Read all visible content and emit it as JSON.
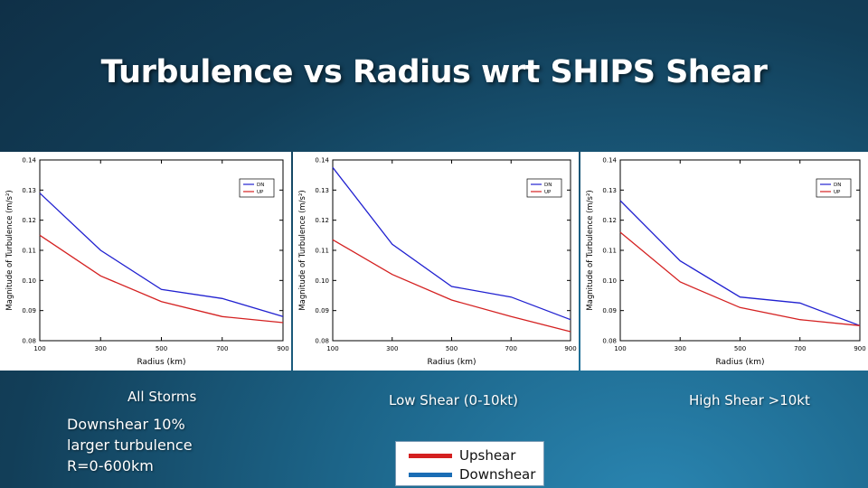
{
  "slide": {
    "title": "Turbulence vs Radius wrt SHIPS Shear",
    "captions": [
      "All Storms",
      "Low Shear (0-10kt)",
      "High Shear >10kt"
    ],
    "note_lines": [
      "Downshear 10%",
      "larger turbulence",
      "R=0-600km"
    ],
    "legend": [
      {
        "label": "Upshear",
        "color": "#d42020"
      },
      {
        "label": "Downshear",
        "color": "#1a6db5"
      }
    ]
  },
  "chart_data": [
    {
      "type": "line",
      "title": "All Storms",
      "xlabel": "Radius (km)",
      "ylabel": "Magnitude of Turbulence (m/s²)",
      "x": [
        100,
        300,
        500,
        700,
        900
      ],
      "xlim": [
        100,
        900
      ],
      "ylim": [
        0.08,
        0.14
      ],
      "xticks": [
        "100",
        "300",
        "500",
        "700",
        "900"
      ],
      "yticks": [
        "0.08",
        "0.09",
        "0.10",
        "0.11",
        "0.12",
        "0.13",
        "0.14"
      ],
      "legend": [
        "DN",
        "UP"
      ],
      "series": [
        {
          "name": "DN",
          "color": "#2020d0",
          "values": [
            0.129,
            0.11,
            0.097,
            0.094,
            0.088
          ]
        },
        {
          "name": "UP",
          "color": "#d42020",
          "values": [
            0.115,
            0.1015,
            0.093,
            0.088,
            0.086
          ]
        }
      ]
    },
    {
      "type": "line",
      "title": "Low Shear (0-10kt)",
      "xlabel": "Radius (km)",
      "ylabel": "Magnitude of Turbulence (m/s²)",
      "x": [
        100,
        300,
        500,
        700,
        900
      ],
      "xlim": [
        100,
        900
      ],
      "ylim": [
        0.08,
        0.14
      ],
      "xticks": [
        "100",
        "300",
        "500",
        "700",
        "900"
      ],
      "yticks": [
        "0.08",
        "0.09",
        "0.10",
        "0.11",
        "0.12",
        "0.13",
        "0.14"
      ],
      "legend": [
        "DN",
        "UP"
      ],
      "series": [
        {
          "name": "DN",
          "color": "#2020d0",
          "values": [
            0.1375,
            0.112,
            0.098,
            0.0945,
            0.087
          ]
        },
        {
          "name": "UP",
          "color": "#d42020",
          "values": [
            0.1135,
            0.102,
            0.0935,
            0.088,
            0.083
          ]
        }
      ]
    },
    {
      "type": "line",
      "title": "High Shear >10kt",
      "xlabel": "Radius (km)",
      "ylabel": "Magnitude of Turbulence (m/s²)",
      "x": [
        100,
        300,
        500,
        700,
        900
      ],
      "xlim": [
        100,
        900
      ],
      "ylim": [
        0.08,
        0.14
      ],
      "xticks": [
        "100",
        "300",
        "500",
        "700",
        "900"
      ],
      "yticks": [
        "0.08",
        "0.09",
        "0.10",
        "0.11",
        "0.12",
        "0.13",
        "0.14"
      ],
      "legend": [
        "DN",
        "UP"
      ],
      "series": [
        {
          "name": "DN",
          "color": "#2020d0",
          "values": [
            0.1265,
            0.1065,
            0.0945,
            0.0925,
            0.085
          ]
        },
        {
          "name": "UP",
          "color": "#d42020",
          "values": [
            0.116,
            0.0995,
            0.091,
            0.087,
            0.085
          ]
        }
      ]
    }
  ]
}
